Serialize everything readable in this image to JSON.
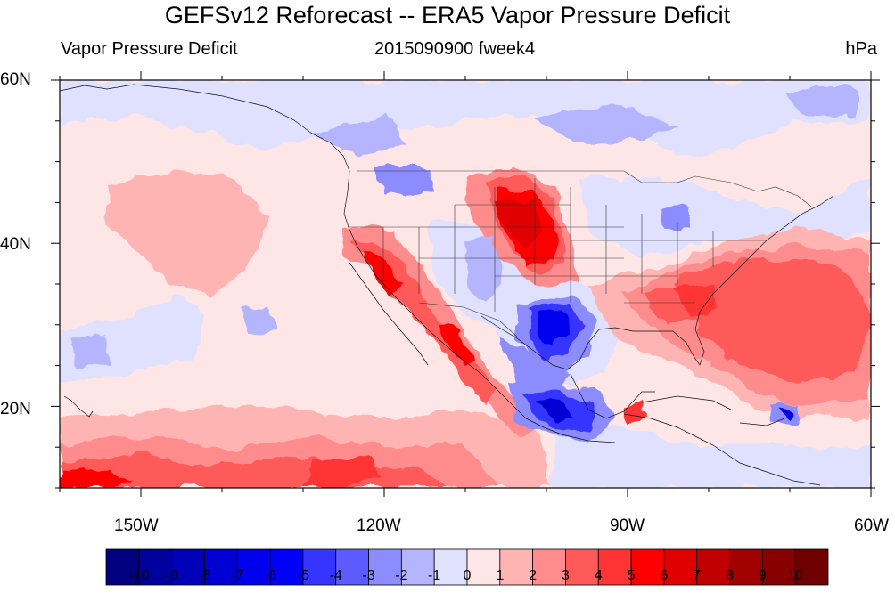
{
  "header": {
    "title": "GEFSv12 Reforecast -- ERA5 Vapor Pressure Deficit",
    "left_label": "Vapor Pressure Deficit",
    "center_label": "2015090900 fweek4",
    "right_label": "hPa"
  },
  "map": {
    "projection": "cylindrical equidistant",
    "lon_range": [
      -160,
      -60
    ],
    "lat_range": [
      10,
      60
    ],
    "lat_labels": [
      "60N",
      "40N",
      "20N"
    ],
    "lon_labels": [
      "150W",
      "120W",
      "90W",
      "60W"
    ],
    "features": [
      "coastlines",
      "national borders",
      "US state boundaries"
    ]
  },
  "colorbar": {
    "labels": [
      "-10",
      "-9",
      "-8",
      "-7",
      "-6",
      "-5",
      "-4",
      "-3",
      "-2",
      "-1",
      "0",
      "1",
      "2",
      "3",
      "4",
      "5",
      "6",
      "7",
      "8",
      "9",
      "10"
    ],
    "colors": [
      "#000080",
      "#00009c",
      "#0000b8",
      "#0000d4",
      "#0000ee",
      "#0000ff",
      "#3535ff",
      "#5b5bff",
      "#8c8cff",
      "#b4b4ff",
      "#e0e0ff",
      "#ffe6e6",
      "#ffb4b4",
      "#ff8c8c",
      "#ff5a5a",
      "#ff3535",
      "#ff0000",
      "#e00000",
      "#c00000",
      "#a00000",
      "#880000",
      "#700000"
    ]
  }
}
